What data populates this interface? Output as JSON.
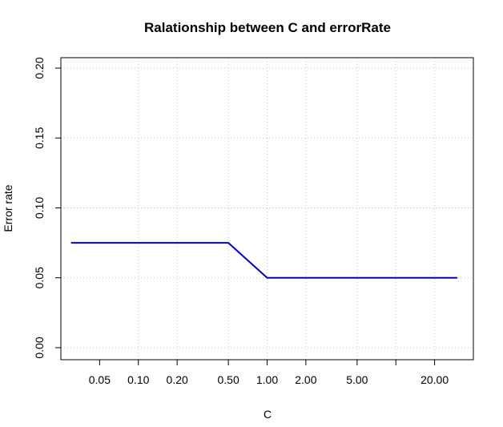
{
  "chart_data": {
    "type": "line",
    "title": "Ralationship between C and errorRate",
    "xlabel": "C",
    "ylabel": "Error rate",
    "x_scale": "log",
    "xlim": [
      0.025,
      40
    ],
    "ylim": [
      0,
      0.2
    ],
    "x_ticks": [
      0.05,
      0.1,
      0.2,
      0.5,
      1,
      2,
      5,
      10,
      20
    ],
    "x_tick_labels": [
      "0.05",
      "0.10",
      "0.20",
      "0.50",
      "1.00",
      "2.00",
      "5.00",
      "",
      "20.00"
    ],
    "y_ticks": [
      0,
      0.05,
      0.1,
      0.15,
      0.2
    ],
    "y_tick_labels": [
      "0.00",
      "0.05",
      "0.10",
      "0.15",
      "0.20"
    ],
    "x_grid": [
      0.1,
      0.2,
      0.5,
      1,
      2,
      5,
      10,
      20
    ],
    "grid": true,
    "series": [
      {
        "color": "#0000cc",
        "points": [
          [
            0.03,
            0.075
          ],
          [
            0.5,
            0.075
          ],
          [
            1,
            0.05
          ],
          [
            30,
            0.05
          ]
        ]
      }
    ]
  }
}
